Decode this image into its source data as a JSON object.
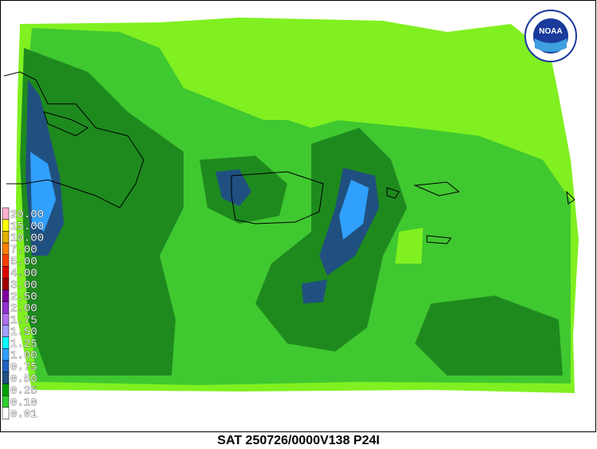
{
  "header": {
    "title": "SAT 250726/0000V138 P24I"
  },
  "logo": {
    "text": "NOAA"
  },
  "legend": {
    "items": [
      {
        "label": "20.00",
        "color": "#ffb0d0"
      },
      {
        "label": "15.00",
        "color": "#ffff00"
      },
      {
        "label": "10.00",
        "color": "#e0b000"
      },
      {
        "label": "7.00",
        "color": "#ff8000"
      },
      {
        "label": "5.00",
        "color": "#ff4000"
      },
      {
        "label": "4.00",
        "color": "#e00000"
      },
      {
        "label": "3.00",
        "color": "#a00000"
      },
      {
        "label": "2.50",
        "color": "#8000a0"
      },
      {
        "label": "2.00",
        "color": "#9030d0"
      },
      {
        "label": "1.75",
        "color": "#b070f0"
      },
      {
        "label": "1.50",
        "color": "#a0a0ff"
      },
      {
        "label": "1.25",
        "color": "#00ffff"
      },
      {
        "label": "1.00",
        "color": "#30a0ff"
      },
      {
        "label": "0.75",
        "color": "#2060c0"
      },
      {
        "label": "0.50",
        "color": "#205080"
      },
      {
        "label": "0.25",
        "color": "#00a000"
      },
      {
        "label": "0.10",
        "color": "#30d030"
      },
      {
        "label": "0.01",
        "color": "#ffffff"
      }
    ]
  }
}
